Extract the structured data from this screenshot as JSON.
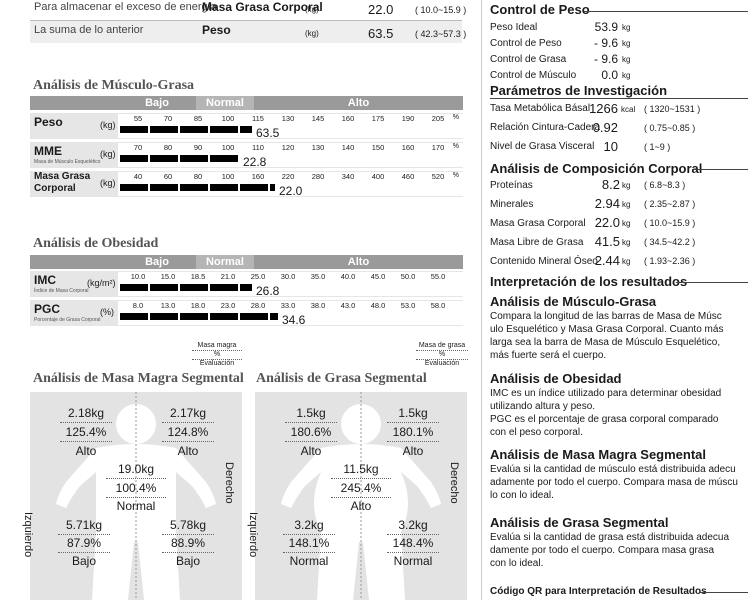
{
  "top_rows": [
    {
      "desc": "Para almacenar el exceso de energía",
      "name": "Masa Grasa Corporal",
      "unit": "(kg)",
      "value": "22.0",
      "range": "( 10.0~15.9 )"
    },
    {
      "desc": "La suma de lo anterior",
      "name": "Peso",
      "unit": "(kg)",
      "value": "63.5",
      "range": "( 42.3~57.3 )"
    }
  ],
  "muscle_fat": {
    "title": "Análisis de Músculo-Grasa",
    "levels": [
      "Bajo",
      "Normal",
      "Alto"
    ],
    "rows": [
      {
        "label": "Peso",
        "sub": "",
        "unit": "(kg)",
        "ticks": [
          "55",
          "70",
          "85",
          "100",
          "115",
          "130",
          "145",
          "160",
          "175",
          "190",
          "205"
        ],
        "pct": "%",
        "value": "63.5",
        "fill": 0.4
      },
      {
        "label": "MME",
        "sub": "Masa de Músculo Esquelético",
        "unit": "(kg)",
        "ticks": [
          "70",
          "80",
          "90",
          "100",
          "110",
          "120",
          "130",
          "140",
          "150",
          "160",
          "170"
        ],
        "pct": "%",
        "value": "22.8",
        "fill": 0.36
      },
      {
        "label": "Masa Grasa Corporal",
        "sub": "",
        "unit": "(kg)",
        "ticks": [
          "40",
          "60",
          "80",
          "100",
          "160",
          "220",
          "280",
          "340",
          "400",
          "460",
          "520"
        ],
        "pct": "%",
        "value": "22.0",
        "fill": 0.47
      }
    ]
  },
  "obesity": {
    "title": "Análisis de Obesidad",
    "levels": [
      "Bajo",
      "Normal",
      "Alto"
    ],
    "rows": [
      {
        "label": "IMC",
        "sub": "Índice de Masa Corporal",
        "unit": "(kg/m²)",
        "ticks": [
          "10.0",
          "15.0",
          "18.5",
          "21.0",
          "25.0",
          "30.0",
          "35.0",
          "40.0",
          "45.0",
          "50.0",
          "55.0"
        ],
        "value": "26.8",
        "fill": 0.4
      },
      {
        "label": "PGC",
        "sub": "Porcentaje de Grasa Corporal",
        "unit": "(%)",
        "ticks": [
          "8.0",
          "13.0",
          "18.0",
          "23.0",
          "28.0",
          "33.0",
          "38.0",
          "43.0",
          "48.0",
          "53.0",
          "58.0"
        ],
        "value": "34.6",
        "fill": 0.48
      }
    ]
  },
  "lean_segmental": {
    "title": "Análisis de Masa Magra Segmental",
    "legend": [
      "Masa magra",
      "%",
      "Evaluación"
    ],
    "side_left": "Izquierdo",
    "side_right": "Derecho",
    "left_arm": {
      "kg": "2.18kg",
      "pct": "125.4%",
      "eval": "Alto"
    },
    "right_arm": {
      "kg": "2.17kg",
      "pct": "124.8%",
      "eval": "Alto"
    },
    "trunk": {
      "kg": "19.0kg",
      "pct": "100.4%",
      "eval": "Normal"
    },
    "left_leg": {
      "kg": "5.71kg",
      "pct": "87.9%",
      "eval": "Bajo"
    },
    "right_leg": {
      "kg": "5.78kg",
      "pct": "88.9%",
      "eval": "Bajo"
    }
  },
  "fat_segmental": {
    "title": "Análisis de Grasa Segmental",
    "legend": [
      "Masa de grasa",
      "%",
      "Evaluación"
    ],
    "side_left": "Izquierdo",
    "side_right": "Derecho",
    "left_arm": {
      "kg": "1.5kg",
      "pct": "180.6%",
      "eval": "Alto"
    },
    "right_arm": {
      "kg": "1.5kg",
      "pct": "180.1%",
      "eval": "Alto"
    },
    "trunk": {
      "kg": "11.5kg",
      "pct": "245.4%",
      "eval": "Alto"
    },
    "left_leg": {
      "kg": "3.2kg",
      "pct": "148.1%",
      "eval": "Normal"
    },
    "right_leg": {
      "kg": "3.2kg",
      "pct": "148.4%",
      "eval": "Normal"
    }
  },
  "weight_control": {
    "title": "Control de Peso",
    "rows": [
      {
        "label": "Peso Ideal",
        "value": "53.9",
        "unit": "kg"
      },
      {
        "label": "Control de Peso",
        "value": "- 9.6",
        "unit": "kg"
      },
      {
        "label": "Control de Grasa",
        "value": "- 9.6",
        "unit": "kg"
      },
      {
        "label": "Control de Músculo",
        "value": "0.0",
        "unit": "kg"
      }
    ]
  },
  "research": {
    "title": "Parámetros de Investigación",
    "rows": [
      {
        "label": "Tasa Metabólica Básal",
        "value": "1266",
        "unit": "kcal",
        "range": "( 1320~1531 )"
      },
      {
        "label": "Relación Cintura-Cadera",
        "value": "0.92",
        "unit": "",
        "range": "( 0.75~0.85 )"
      },
      {
        "label": "Nivel de Grasa Visceral",
        "value": "10",
        "unit": "",
        "range": "( 1~9 )"
      }
    ]
  },
  "composition": {
    "title": "Análisis de Composición Corporal",
    "rows": [
      {
        "label": "Proteínas",
        "value": "8.2",
        "unit": "kg",
        "range": "( 6.8~8.3 )"
      },
      {
        "label": "Minerales",
        "value": "2.94",
        "unit": "kg",
        "range": "( 2.35~2.87 )"
      },
      {
        "label": "Masa Grasa Corporal",
        "value": "22.0",
        "unit": "kg",
        "range": "( 10.0~15.9 )"
      },
      {
        "label": "Masa Libre de Grasa",
        "value": "41.5",
        "unit": "kg",
        "range": "( 34.5~42.2 )"
      },
      {
        "label": "Contenido Mineral Óseo",
        "value": "2.44",
        "unit": "kg",
        "range": "( 1.93~2.36 )"
      }
    ]
  },
  "interpretation": {
    "title": "Interpretación de los resultados",
    "sections": [
      {
        "heading": "Análisis de Músculo-Grasa",
        "lines": [
          "Compara la longitud de las barras de Masa de Músc",
          "ulo Esquelético y Masa Grasa Corporal. Cuanto más",
          "larga sea la barra de Masa de Músculo Esquelético,",
          "más fuerte será el cuerpo."
        ]
      },
      {
        "heading": "Análisis de Obesidad",
        "lines": [
          "IMC es un índice utilizado para determinar obesidad",
          "utilizando altura y peso.",
          "PGC es el porcentaje de grasa corporal comparado",
          "con el peso corporal."
        ]
      },
      {
        "heading": "Análisis de Masa Magra Segmental",
        "lines": [
          "Evalúa si la cantidad de músculo está distribuida adecu",
          "adamente por todo el cuerpo. Compara masa de múscu",
          "lo con lo ideal."
        ]
      },
      {
        "heading": "Análisis de Grasa Segmental",
        "lines": [
          "Evalúa si la cantidad de grasa está distribuida adecua",
          "damente por todo el cuerpo. Compara masa grasa",
          "con lo ideal."
        ]
      }
    ],
    "qr_title": "Código QR para Interpretación de Resultados"
  }
}
